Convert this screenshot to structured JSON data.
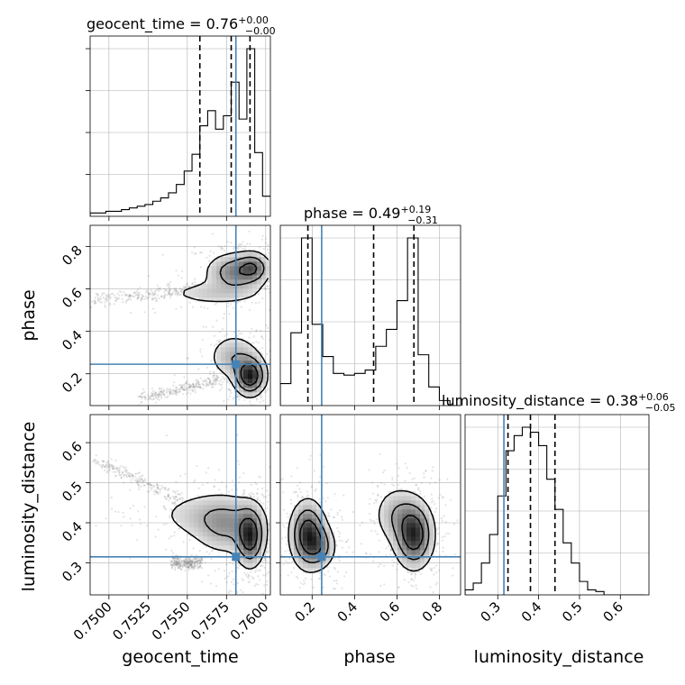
{
  "chart_data": {
    "type": "corner",
    "parameters": [
      "geocent_time",
      "phase",
      "luminosity_distance"
    ],
    "axis_labels": {
      "geocent_time": "geocent_time",
      "phase": "phase",
      "luminosity_distance": "luminosity_distance"
    },
    "titles": [
      {
        "name": "geocent_time",
        "prefix": "geocent_time = 0.76",
        "plus": "+0.00",
        "minus": "−0.00"
      },
      {
        "name": "phase",
        "prefix": "phase = 0.49",
        "plus": "+0.19",
        "minus": "−0.31"
      },
      {
        "name": "luminosity_distance",
        "prefix": "luminosity_distance = 0.38",
        "plus": "+0.06",
        "minus": "−0.05"
      }
    ],
    "ranges": {
      "geocent_time": [
        0.7488,
        0.7603
      ],
      "phase": [
        0.05,
        0.9
      ],
      "luminosity_distance": [
        0.22,
        0.67
      ]
    },
    "ticks": {
      "geocent_time": [
        0.75,
        0.7525,
        0.755,
        0.7575,
        0.76
      ],
      "geocent_time_labels": [
        "0.7500",
        "0.7525",
        "0.7550",
        "0.7575",
        "0.7600"
      ],
      "phase": [
        0.2,
        0.4,
        0.6,
        0.8
      ],
      "phase_labels": [
        "0.2",
        "0.4",
        "0.6",
        "0.8"
      ],
      "luminosity_distance": [
        0.3,
        0.4,
        0.5,
        0.6
      ],
      "luminosity_distance_labels": [
        "0.3",
        "0.4",
        "0.5",
        "0.6"
      ]
    },
    "truths": {
      "geocent_time": 0.7581,
      "phase": 0.245,
      "luminosity_distance": 0.315
    },
    "quantiles": {
      "geocent_time": [
        0.7558,
        0.7578,
        0.759
      ],
      "phase": [
        0.18,
        0.49,
        0.68
      ],
      "luminosity_distance": [
        0.325,
        0.38,
        0.44
      ]
    },
    "histograms": {
      "geocent_time": {
        "edges": [
          0.7488,
          0.7493,
          0.7498,
          0.7503,
          0.7508,
          0.7513,
          0.7518,
          0.7523,
          0.7528,
          0.7533,
          0.7538,
          0.7543,
          0.7548,
          0.7553,
          0.7558,
          0.7563,
          0.7568,
          0.7573,
          0.7578,
          0.7583,
          0.7588,
          0.7593,
          0.7598,
          0.7603
        ],
        "counts": [
          0.02,
          0.02,
          0.03,
          0.03,
          0.04,
          0.05,
          0.06,
          0.07,
          0.09,
          0.11,
          0.14,
          0.19,
          0.27,
          0.37,
          0.54,
          0.63,
          0.52,
          0.6,
          0.8,
          0.58,
          1.0,
          0.38,
          0.12
        ]
      },
      "phase": {
        "edges": [
          0.05,
          0.1,
          0.15,
          0.2,
          0.25,
          0.3,
          0.35,
          0.4,
          0.45,
          0.5,
          0.55,
          0.6,
          0.65,
          0.7,
          0.75,
          0.8,
          0.85,
          0.9
        ],
        "counts": [
          0.13,
          0.43,
          0.99,
          0.48,
          0.29,
          0.19,
          0.18,
          0.19,
          0.21,
          0.35,
          0.45,
          0.62,
          0.99,
          0.3,
          0.11,
          0.03,
          0.0
        ]
      },
      "luminosity_distance": {
        "edges": [
          0.22,
          0.24,
          0.26,
          0.28,
          0.3,
          0.32,
          0.34,
          0.36,
          0.38,
          0.4,
          0.42,
          0.44,
          0.46,
          0.48,
          0.5,
          0.52,
          0.54,
          0.56,
          0.58,
          0.6,
          0.62,
          0.64,
          0.66
        ],
        "counts": [
          0.03,
          0.07,
          0.19,
          0.36,
          0.59,
          0.86,
          0.95,
          1.0,
          0.97,
          0.89,
          0.69,
          0.51,
          0.31,
          0.19,
          0.08,
          0.03,
          0.02,
          0.0,
          0.0,
          0.0,
          0.0,
          0.0
        ]
      }
    },
    "density_2d": {
      "phase_vs_geocent_time": {
        "x": "geocent_time",
        "y": "phase",
        "blobs": [
          {
            "cx": 0.759,
            "cy": 0.19,
            "sx": 0.00055,
            "sy": 0.05,
            "w": 1.0
          },
          {
            "cx": 0.758,
            "cy": 0.28,
            "sx": 0.0009,
            "sy": 0.06,
            "w": 0.35
          },
          {
            "cx": 0.758,
            "cy": 0.68,
            "sx": 0.001,
            "sy": 0.05,
            "w": 0.55
          },
          {
            "cx": 0.7568,
            "cy": 0.58,
            "sx": 0.002,
            "sy": 0.035,
            "w": 0.22
          },
          {
            "cx": 0.7592,
            "cy": 0.7,
            "sx": 0.0006,
            "sy": 0.04,
            "w": 0.55
          }
        ],
        "streaks": [
          {
            "x0": 0.749,
            "y0": 0.55,
            "x1": 0.7565,
            "y1": 0.6
          },
          {
            "x0": 0.752,
            "y0": 0.08,
            "x1": 0.757,
            "y1": 0.17
          }
        ]
      },
      "luminosity_distance_vs_geocent_time": {
        "x": "geocent_time",
        "y": "luminosity_distance",
        "blobs": [
          {
            "cx": 0.759,
            "cy": 0.365,
            "sx": 0.0005,
            "sy": 0.04,
            "w": 1.0
          },
          {
            "cx": 0.7575,
            "cy": 0.39,
            "sx": 0.0012,
            "sy": 0.04,
            "w": 0.4
          },
          {
            "cx": 0.7562,
            "cy": 0.42,
            "sx": 0.002,
            "sy": 0.035,
            "w": 0.25
          }
        ],
        "streaks": [
          {
            "x0": 0.749,
            "y0": 0.56,
            "x1": 0.756,
            "y1": 0.43
          },
          {
            "x0": 0.754,
            "y0": 0.3,
            "x1": 0.756,
            "y1": 0.3
          }
        ]
      },
      "luminosity_distance_vs_phase": {
        "x": "phase",
        "y": "luminosity_distance",
        "blobs": [
          {
            "cx": 0.18,
            "cy": 0.37,
            "sx": 0.045,
            "sy": 0.045,
            "w": 1.0
          },
          {
            "cx": 0.68,
            "cy": 0.37,
            "sx": 0.05,
            "sy": 0.045,
            "w": 1.0
          },
          {
            "cx": 0.6,
            "cy": 0.42,
            "sx": 0.06,
            "sy": 0.04,
            "w": 0.35
          },
          {
            "cx": 0.24,
            "cy": 0.34,
            "sx": 0.04,
            "sy": 0.03,
            "w": 0.45
          }
        ],
        "streaks": []
      }
    },
    "colors": {
      "truth": "#4682b4",
      "line": "#000000",
      "grid": "#b0b0b0",
      "scatter": "#808080"
    }
  }
}
